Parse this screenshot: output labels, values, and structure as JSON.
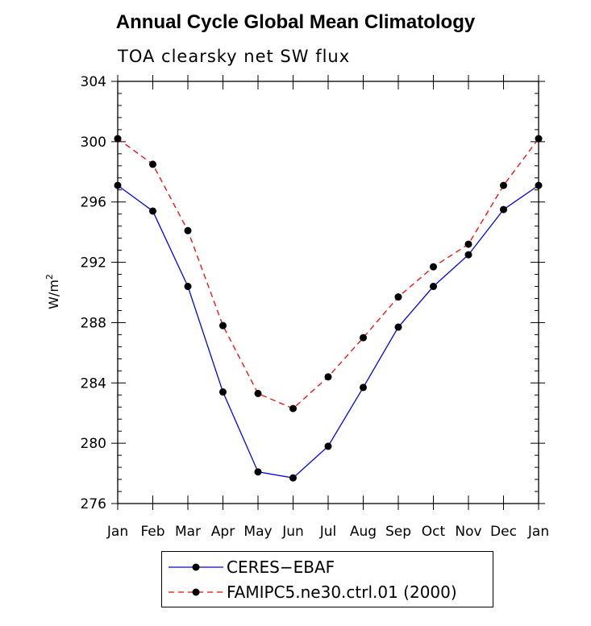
{
  "chart_data": {
    "type": "line",
    "title": "Annual Cycle Global Mean Climatology",
    "subtitle": "TOA clearsky net SW flux",
    "ylabel": "W/m",
    "ylabel_sup": "2",
    "xlabel": "",
    "categories": [
      "Jan",
      "Feb",
      "Mar",
      "Apr",
      "May",
      "Jun",
      "Jul",
      "Aug",
      "Sep",
      "Oct",
      "Nov",
      "Dec",
      "Jan"
    ],
    "ylim": [
      276,
      304
    ],
    "yticks": [
      276,
      280,
      284,
      288,
      292,
      296,
      300,
      304
    ],
    "grid": false,
    "legend_position": "bottom",
    "series": [
      {
        "name": "CERES−EBAF",
        "color": "#0000ff",
        "dash": "solid",
        "marker": "circle",
        "values": [
          297.1,
          295.4,
          290.4,
          283.4,
          278.1,
          277.7,
          279.8,
          283.7,
          287.7,
          290.4,
          292.5,
          295.5,
          297.1
        ]
      },
      {
        "name": "FAMIPC5.ne30.ctrl.01 (2000)",
        "color": "#ff0000",
        "dash": "dashed",
        "marker": "circle",
        "values": [
          300.2,
          298.5,
          294.1,
          287.8,
          283.3,
          282.3,
          284.4,
          287.0,
          289.7,
          291.7,
          293.2,
          297.1,
          300.2
        ]
      }
    ]
  }
}
